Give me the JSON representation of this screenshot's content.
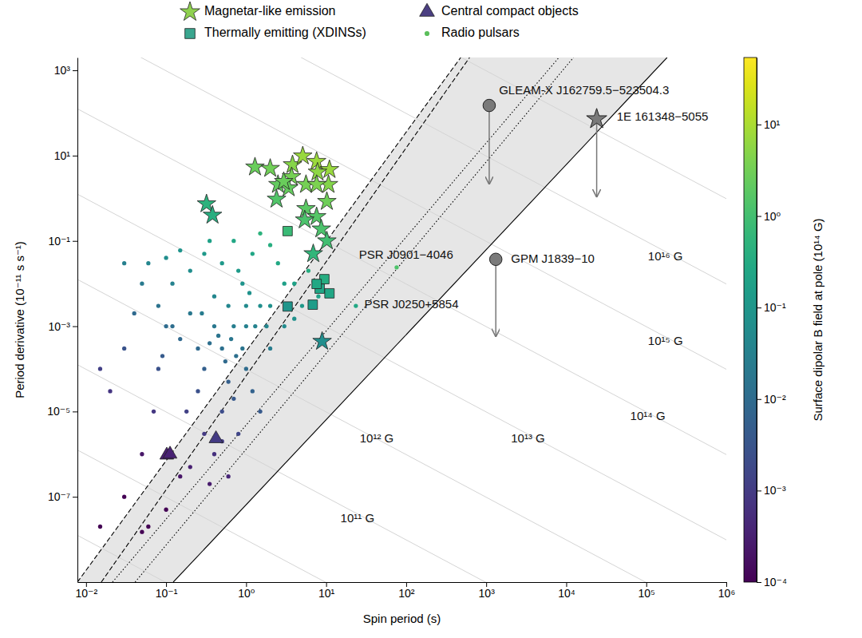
{
  "chart_data": {
    "type": "scatter",
    "xlabel": "Spin period (s)",
    "ylabel": "Period derivative (10⁻¹¹ s s⁻¹)",
    "log": true,
    "legend": "top",
    "xlim": [
      0.0078,
      1000000
    ],
    "ylim": [
      1e-09,
      2000
    ],
    "xticks": [
      {
        "value": 0.01,
        "label": "10⁻²"
      },
      {
        "value": 0.1,
        "label": "10⁻¹"
      },
      {
        "value": 1,
        "label": "10⁰"
      },
      {
        "value": 10,
        "label": "10¹"
      },
      {
        "value": 100,
        "label": "10²"
      },
      {
        "value": 1000,
        "label": "10³"
      },
      {
        "value": 10000,
        "label": "10⁴"
      },
      {
        "value": 100000,
        "label": "10⁵"
      },
      {
        "value": 1000000,
        "label": "10⁶"
      }
    ],
    "yticks": [
      {
        "value": 1000,
        "label": "10³"
      },
      {
        "value": 10,
        "label": "10¹"
      },
      {
        "value": 0.1,
        "label": "10⁻¹"
      },
      {
        "value": 0.001,
        "label": "10⁻³"
      },
      {
        "value": 1e-05,
        "label": "10⁻⁵"
      },
      {
        "value": 1e-07,
        "label": "10⁻⁷"
      }
    ],
    "series": [
      {
        "name": "Magnetar-like emission",
        "marker": "star",
        "color": "#8fd14f",
        "x": [
          0.32,
          0.38,
          1.29,
          2.0,
          2.4,
          2.5,
          3.8,
          5.1,
          7.6,
          11,
          3.7,
          7.8,
          10.7,
          5.6,
          7.6,
          3.4,
          2.95,
          10.2,
          5.6,
          7.6,
          5.4,
          8.7,
          10.2,
          6.9,
          8.9
        ],
        "values": [
          0.74,
          0.4,
          5.4,
          5.0,
          0.95,
          2.1,
          6.1,
          9.8,
          7.3,
          4.7,
          3.2,
          4.1,
          2.1,
          2.1,
          2.1,
          1.75,
          2.47,
          0.84,
          0.57,
          0.37,
          0.31,
          0.19,
          0.1,
          0.05,
          0.00044
        ],
        "b_field": [
          0.49,
          0.39,
          2.6,
          3.16,
          1.5,
          2.3,
          4.8,
          7.1,
          7.4,
          7.2,
          3.4,
          5.7,
          4.7,
          3.4,
          4.0,
          2.4,
          2.7,
          2.9,
          1.8,
          1.7,
          1.3,
          1.3,
          1.0,
          0.59,
          0.063
        ]
      },
      {
        "name": "Thermally emitting (XDINSs)",
        "marker": "square",
        "color": "#3aa68f",
        "x": [
          3.3,
          3.3,
          6.8,
          8.3,
          9.5,
          11,
          7.6
        ],
        "values": [
          0.17,
          0.0029,
          0.0032,
          0.0076,
          0.0127,
          0.0059,
          0.0098
        ],
        "b_field": [
          0.75,
          0.098,
          0.147,
          0.25,
          0.35,
          0.25,
          0.27
        ]
      },
      {
        "name": "Central compact objects",
        "marker": "triangle",
        "color": "#4b3f82",
        "x": [
          0.102,
          0.112,
          0.42
        ],
        "values": [
          9.5e-07,
          1e-06,
          2.3e-06
        ],
        "b_field": [
          0.00031,
          0.00033,
          0.00098
        ]
      },
      {
        "name": "Radio pulsars",
        "marker": "circle",
        "color": "#5cbf5c",
        "x": [
          0.5,
          0.7,
          0.3,
          1.0,
          0.4,
          0.6,
          1.5,
          0.25,
          0.2,
          0.15,
          0.1,
          0.08,
          0.05,
          0.04,
          0.03,
          0.06,
          0.12,
          0.2,
          0.3,
          0.5,
          0.8,
          1.2,
          0.15,
          0.1,
          0.35,
          0.7,
          1.5,
          2.0,
          2.5,
          3.0,
          2.0,
          3.0,
          5.0,
          4.0,
          1.0,
          2.0,
          1.5,
          0.8,
          0.5,
          0.3,
          0.4,
          0.25,
          0.18,
          0.6,
          0.35,
          0.2,
          0.03,
          0.015,
          0.05,
          0.06,
          0.1,
          0.15,
          0.05,
          0.02,
          0.015,
          0.03,
          0.08,
          0.07,
          1.0,
          0.6,
          0.9,
          1.3,
          1.8,
          0.45,
          0.55,
          0.65,
          0.35,
          0.75,
          0.28,
          1.1,
          0.9,
          6.0,
          8.0,
          4.0,
          0.5,
          1.2,
          0.7,
          0.12,
          0.09,
          0.4,
          76,
          23.5
        ],
        "values": [
          0.0003,
          0.001,
          0.0001,
          0.001,
          0.001,
          5e-05,
          0.003,
          0.0003,
          0.002,
          0.0005,
          0.001,
          0.003,
          0.01,
          0.002,
          0.03,
          0.03,
          0.01,
          0.02,
          0.05,
          0.03,
          0.02,
          0.05,
          0.06,
          0.04,
          0.1,
          0.1,
          0.15,
          0.08,
          0.03,
          0.01,
          0.003,
          0.001,
          0.003,
          0.01,
          0.0001,
          0.0003,
          1e-05,
          3e-06,
          1e-05,
          3e-06,
          1e-06,
          3e-05,
          1e-05,
          3e-07,
          2e-07,
          5e-07,
          1e-07,
          2e-08,
          1.5e-08,
          2e-08,
          5e-08,
          3e-07,
          1e-06,
          3e-05,
          0.0001,
          0.0003,
          0.0001,
          1e-05,
          0.003,
          0.003,
          0.0003,
          0.001,
          0.001,
          0.0006,
          0.00015,
          0.0005,
          0.0004,
          0.0002,
          0.002,
          0.006,
          0.01,
          0.02,
          0.005,
          0.0015,
          2e-06,
          3e-05,
          2e-05,
          0.001,
          0.0002,
          0.005,
          0.024,
          0.003
        ],
        "b_field": [
          0.0122,
          0.0265,
          0.0055,
          0.0316,
          0.02,
          0.0055,
          0.067,
          0.0087,
          0.02,
          0.0087,
          0.01,
          0.0155,
          0.0224,
          0.0089,
          0.03,
          0.042,
          0.0346,
          0.063,
          0.122,
          0.122,
          0.126,
          0.245,
          0.095,
          0.063,
          0.187,
          0.265,
          0.474,
          0.4,
          0.274,
          0.173,
          0.077,
          0.055,
          0.122,
          0.2,
          0.01,
          0.0245,
          0.0039,
          0.00155,
          0.0022,
          0.00095,
          0.00063,
          0.0027,
          0.0013,
          0.00042,
          0.00026,
          0.00032,
          5.5e-05,
          1.7e-05,
          2.7e-05,
          3.5e-05,
          7e-05,
          0.00021,
          0.00022,
          0.00077,
          0.0012,
          0.003,
          0.0028,
          0.00084,
          0.055,
          0.042,
          0.0164,
          0.036,
          0.042,
          0.0164,
          0.0091,
          0.018,
          0.0118,
          0.0122,
          0.0237,
          0.081,
          0.095,
          0.346,
          0.2,
          0.077,
          0.001,
          0.006,
          0.0037,
          0.011,
          0.0042,
          0.045,
          1.35,
          0.27
        ]
      }
    ],
    "upper_limits": [
      {
        "marker": "circle",
        "x": 1090,
        "y": 150,
        "y_end": 2.1
      },
      {
        "marker": "star",
        "x": 24000,
        "y": 72,
        "y_end": 1.05
      },
      {
        "marker": "circle",
        "x": 1318,
        "y": 0.037,
        "y_end": 0.00056
      }
    ],
    "shaded_region": {
      "x": [
        0.0078,
        480,
        182000,
        0.123
      ],
      "y": [
        1e-09,
        2000,
        2000,
        1e-09
      ]
    },
    "reference_lines": [
      {
        "line_style": "solid",
        "color": "#d4d4d4",
        "x": [
          0.0078,
          1000000
        ],
        "y": [
          125000000.0,
          0.9766
        ]
      },
      {
        "line_style": "solid",
        "color": "#d4d4d4",
        "x": [
          0.0078,
          1000000
        ],
        "y": [
          1250000.0,
          0.009766
        ]
      },
      {
        "line_style": "solid",
        "color": "#d4d4d4",
        "x": [
          0.0078,
          1000000
        ],
        "y": [
          12500,
          9.766e-05
        ]
      },
      {
        "line_style": "solid",
        "color": "#d4d4d4",
        "x": [
          0.0078,
          1000000
        ],
        "y": [
          125.2,
          9.766e-07
        ]
      },
      {
        "line_style": "solid",
        "color": "#d4d4d4",
        "x": [
          0.0078,
          1000000
        ],
        "y": [
          1.252,
          9.766e-09
        ]
      },
      {
        "line_style": "solid",
        "color": "#d4d4d4",
        "x": [
          0.0078,
          1000000
        ],
        "y": [
          0.01252,
          9.766e-11
        ]
      },
      {
        "line_style": "solid",
        "color": "#d4d4d4",
        "x": [
          0.0078,
          1000000
        ],
        "y": [
          0.0001252,
          9.766e-13
        ]
      },
      {
        "line_style": "solid",
        "color": "#d4d4d4",
        "x": [
          0.0078,
          1000000
        ],
        "y": [
          1.252e-06,
          9.766e-15
        ]
      },
      {
        "line_style": "solid",
        "color": "#d4d4d4",
        "x": [
          0.0078,
          1000000
        ],
        "y": [
          1.252e-08,
          9.766e-17
        ]
      },
      {
        "line_style": "dashed",
        "color": "#000000",
        "x": [
          0.0078,
          480
        ],
        "y": [
          1e-09,
          2000
        ]
      },
      {
        "line_style": "dashed",
        "color": "#000000",
        "x": [
          0.0155,
          620
        ],
        "y": [
          1e-09,
          2000
        ]
      },
      {
        "line_style": "dotted",
        "color": "#000000",
        "x": [
          0.0214,
          8100
        ],
        "y": [
          1e-09,
          2000
        ]
      },
      {
        "line_style": "dotted",
        "color": "#000000",
        "x": [
          0.041,
          12300
        ],
        "y": [
          1e-09,
          2000
        ]
      },
      {
        "line_style": "solid",
        "color": "#000000",
        "x": [
          0.123,
          182000
        ],
        "y": [
          1e-09,
          2000
        ]
      }
    ],
    "annotations": [
      {
        "text": "GLEAM-X J162759.5−523504.3",
        "x": 1445,
        "y": 325
      },
      {
        "text": "1E 161348−5055",
        "x": 42700,
        "y": 78
      },
      {
        "text": "PSR J0901−4046",
        "x": 25.7,
        "y": 0.046
      },
      {
        "text": "GPM J1839−10",
        "x": 2040,
        "y": 0.037
      },
      {
        "text": "PSR J0250+5854",
        "x": 30,
        "y": 0.0032
      },
      {
        "text": "10¹⁶ G",
        "x": 105000,
        "y": 0.041
      },
      {
        "text": "10¹⁵ G",
        "x": 105000,
        "y": 0.00044
      },
      {
        "text": "10¹⁴ G",
        "x": 63000,
        "y": 7.5e-06
      },
      {
        "text": "10¹³ G",
        "x": 2040,
        "y": 2.2e-06
      },
      {
        "text": "10¹² G",
        "x": 26.3,
        "y": 2.2e-06
      },
      {
        "text": "10¹¹ G",
        "x": 15.1,
        "y": 3e-08
      }
    ],
    "colorbar": {
      "label": "Surface dipolar B field at pole (10¹⁴ G)",
      "lim": [
        0.0001,
        54
      ],
      "ticks": [
        {
          "value": 0.0001,
          "label": "10⁻⁴"
        },
        {
          "value": 0.001,
          "label": "10⁻³"
        },
        {
          "value": 0.01,
          "label": "10⁻²"
        },
        {
          "value": 0.1,
          "label": "10⁻¹"
        },
        {
          "value": 1,
          "label": "10⁰"
        },
        {
          "value": 10,
          "label": "10¹"
        }
      ]
    }
  }
}
